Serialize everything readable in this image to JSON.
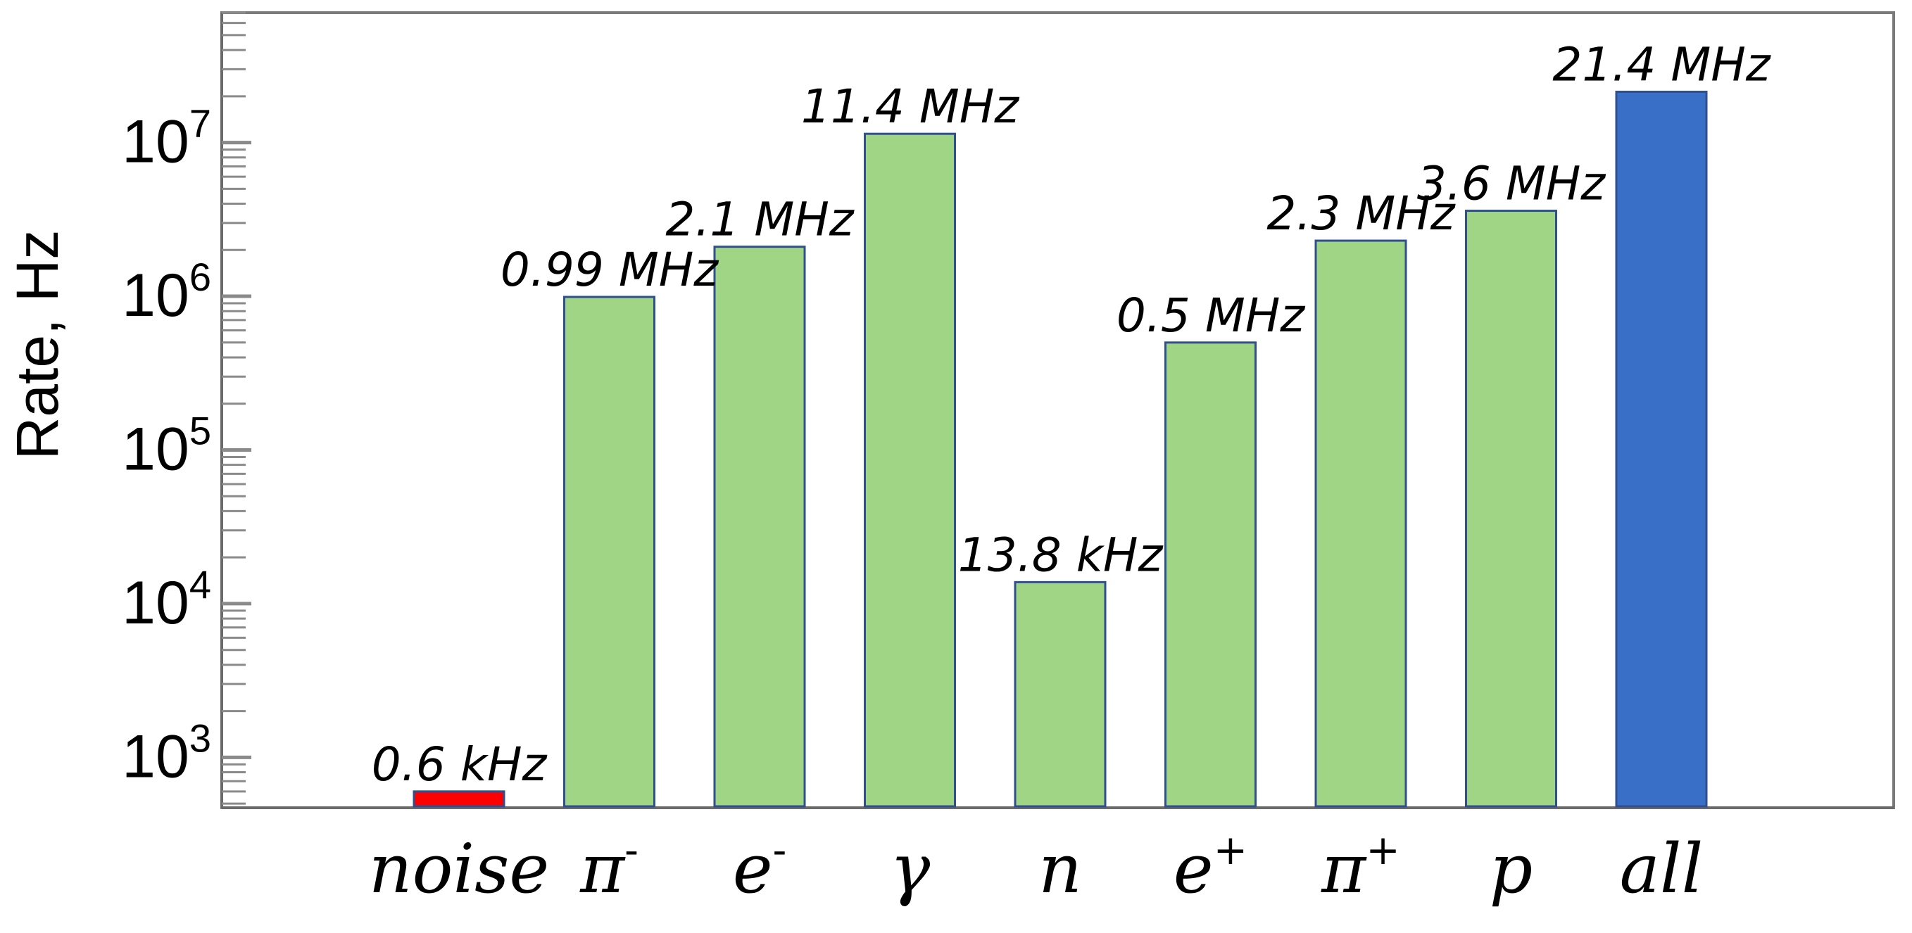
{
  "chart_data": {
    "type": "bar",
    "yscale": "log",
    "ylabel": "Rate, Hz",
    "xlabel": "",
    "title": "",
    "ylim": [
      470,
      70000000
    ],
    "grid": false,
    "categories": [
      {
        "base": "noise",
        "sup": ""
      },
      {
        "base": "π",
        "sup": "-"
      },
      {
        "base": "e",
        "sup": "-"
      },
      {
        "base": "γ",
        "sup": ""
      },
      {
        "base": "n",
        "sup": ""
      },
      {
        "base": "e",
        "sup": "+"
      },
      {
        "base": "π",
        "sup": "+"
      },
      {
        "base": "p",
        "sup": ""
      },
      {
        "base": "all",
        "sup": ""
      }
    ],
    "values": [
      600,
      990000,
      2100000,
      11400000,
      13800,
      500000,
      2300000,
      3600000,
      21400000
    ],
    "data_labels": [
      "0.6 kHz",
      "0.99 MHz",
      "2.1 MHz",
      "11.4 MHz",
      "13.8 kHz",
      "0.5 MHz",
      "2.3 MHz",
      "3.6 MHz",
      "21.4 MHz"
    ],
    "bar_colors": [
      "#ff0000",
      "#a0d585",
      "#a0d585",
      "#a0d585",
      "#a0d585",
      "#a0d585",
      "#a0d585",
      "#a0d585",
      "#3a6fc7"
    ],
    "bar_stroke": "#2f4f8f",
    "y_ticks": [
      {
        "exp": 3,
        "base": "10",
        "sup": "3"
      },
      {
        "exp": 4,
        "base": "10",
        "sup": "4"
      },
      {
        "exp": 5,
        "base": "10",
        "sup": "5"
      },
      {
        "exp": 6,
        "base": "10",
        "sup": "6"
      },
      {
        "exp": 7,
        "base": "10",
        "sup": "7"
      }
    ]
  }
}
